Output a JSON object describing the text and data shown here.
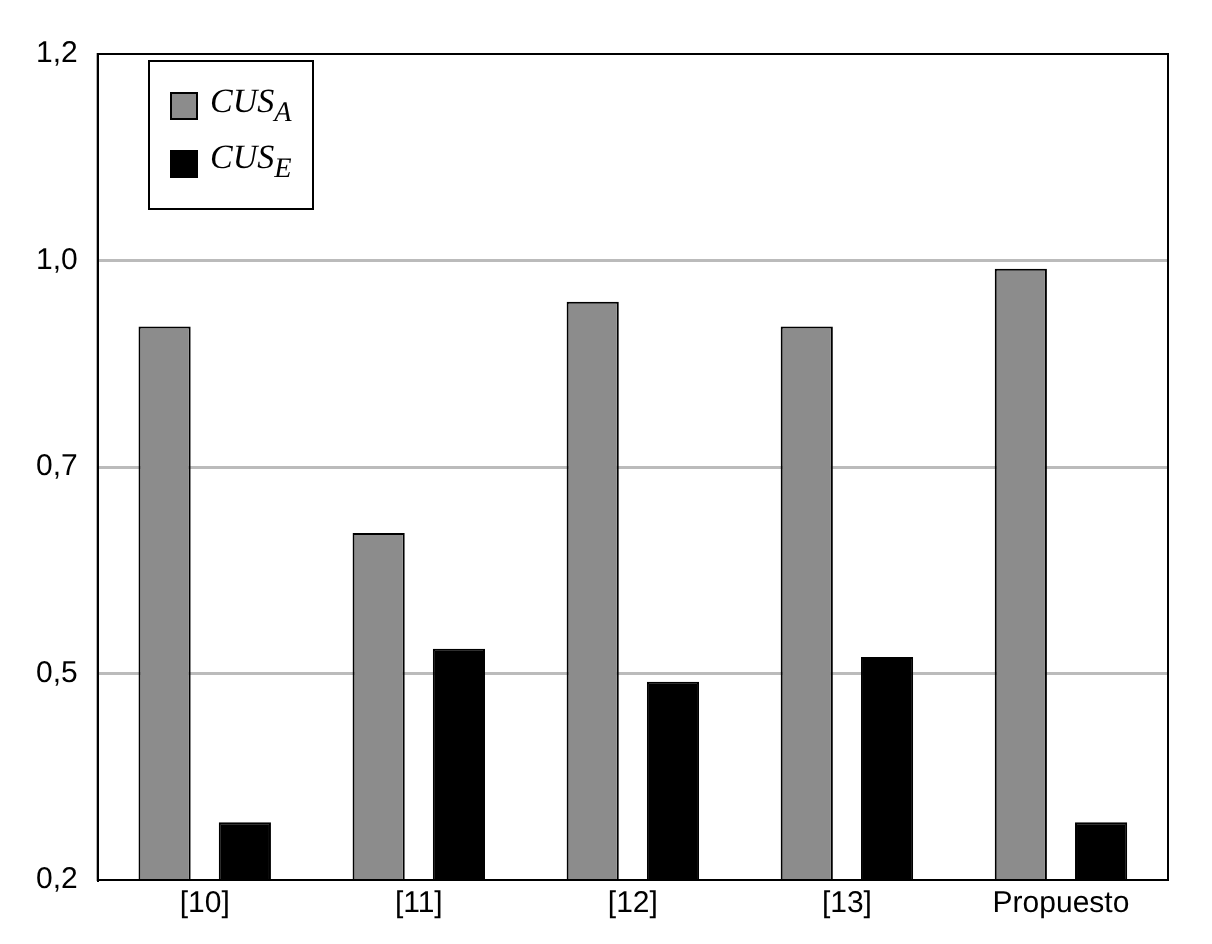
{
  "chart_data": {
    "type": "bar",
    "categories": [
      "[10]",
      "[11]",
      "[12]",
      "[13]",
      "Propuesto"
    ],
    "series": [
      {
        "name": "CUS$_{A}$",
        "color": "#8c8c8c",
        "values": [
          0.92,
          0.67,
          0.95,
          0.92,
          0.99
        ]
      },
      {
        "name": "CUS$_{E}$",
        "color": "#000000",
        "values": [
          0.32,
          0.53,
          0.49,
          0.52,
          0.32
        ]
      }
    ],
    "ylim": [
      0.25,
      1.25
    ],
    "yticks": [
      {
        "value": 0.25,
        "label": "0,2"
      },
      {
        "value": 0.5,
        "label": "0,5"
      },
      {
        "value": 0.75,
        "label": "0,7"
      },
      {
        "value": 1.0,
        "label": "1,0"
      },
      {
        "value": 1.25,
        "label": "1,2"
      }
    ],
    "grid": "y",
    "legend": "top left"
  }
}
